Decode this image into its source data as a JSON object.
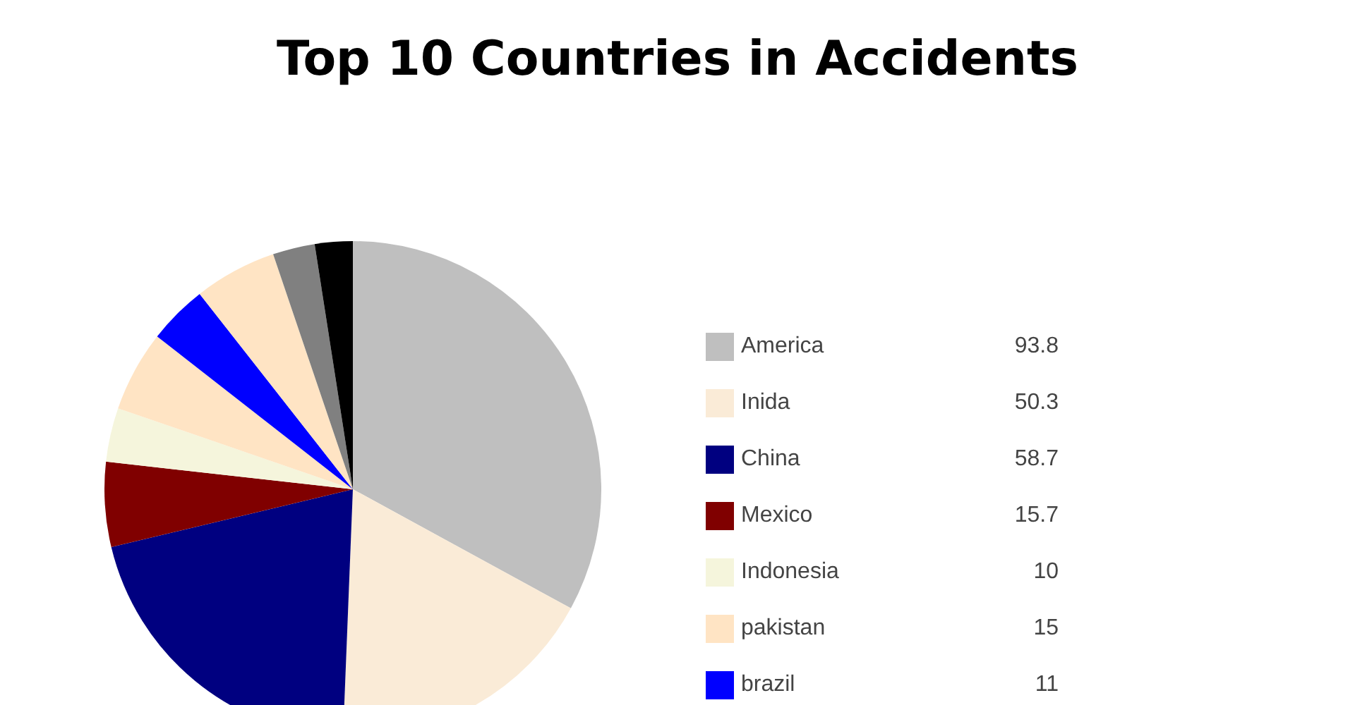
{
  "chart_data": {
    "type": "pie",
    "title": "Top 10 Countries in Accidents",
    "categories": [
      "America",
      "Inida",
      "China",
      "Mexico",
      "Indonesia",
      "pakistan",
      "brazil",
      null,
      null,
      null
    ],
    "values": [
      93.8,
      50.3,
      58.7,
      15.7,
      10,
      15,
      11,
      15.3,
      7.8,
      7
    ],
    "value_labels": [
      "93.8",
      "50.3",
      "58.7",
      "15.7",
      "10",
      "15",
      "11",
      null,
      null,
      null
    ],
    "colors": [
      "#bfbfbf",
      "#faebd7",
      "#000080",
      "#800000",
      "#f5f5dc",
      "#ffe4c4",
      "#0000ff",
      "#ffe4c4",
      "#808080",
      "#000000"
    ],
    "legend": "right"
  }
}
